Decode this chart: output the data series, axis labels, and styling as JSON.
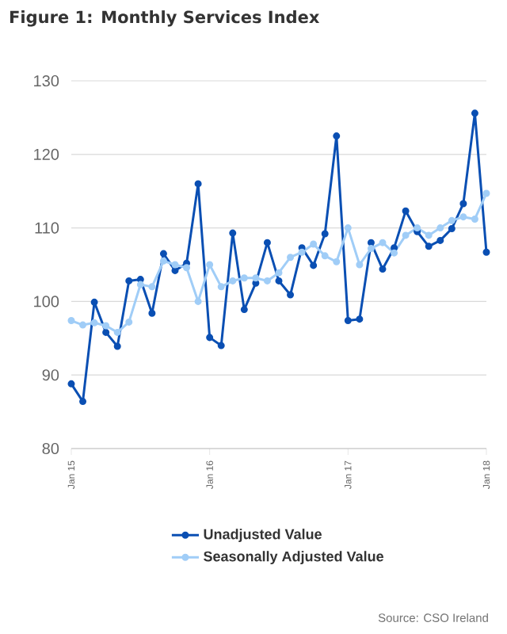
{
  "chart_data": {
    "type": "line",
    "title": "Figure 1: Monthly Services Index",
    "x": [
      "2015-01",
      "2015-02",
      "2015-03",
      "2015-04",
      "2015-05",
      "2015-06",
      "2015-07",
      "2015-08",
      "2015-09",
      "2015-10",
      "2015-11",
      "2015-12",
      "2016-01",
      "2016-02",
      "2016-03",
      "2016-04",
      "2016-05",
      "2016-06",
      "2016-07",
      "2016-08",
      "2016-09",
      "2016-10",
      "2016-11",
      "2016-12",
      "2017-01",
      "2017-02",
      "2017-03",
      "2017-04",
      "2017-05",
      "2017-06",
      "2017-07",
      "2017-08",
      "2017-09",
      "2017-10",
      "2017-11",
      "2017-12",
      "2018-01"
    ],
    "series": [
      {
        "name": "Unadjusted Value",
        "color": "#0a4fb3",
        "values": [
          88.8,
          86.4,
          99.9,
          95.8,
          93.9,
          102.8,
          103.0,
          98.4,
          106.5,
          104.2,
          105.2,
          116.0,
          95.1,
          94.0,
          109.3,
          98.9,
          102.5,
          108.0,
          102.8,
          100.9,
          107.3,
          104.9,
          109.2,
          122.5,
          97.4,
          97.6,
          108.0,
          104.4,
          107.3,
          112.3,
          109.5,
          107.5,
          108.3,
          109.9,
          113.3,
          125.6,
          106.7
        ]
      },
      {
        "name": "Seasonally Adjusted Value",
        "color": "#a0cdf7",
        "values": [
          97.4,
          96.8,
          97.1,
          96.7,
          95.8,
          97.2,
          102.3,
          102.0,
          105.5,
          105.0,
          104.6,
          100.0,
          105.0,
          102.0,
          102.8,
          103.2,
          103.2,
          102.8,
          103.9,
          106.0,
          106.7,
          107.8,
          106.2,
          105.4,
          110.0,
          105.0,
          107.2,
          108.0,
          106.6,
          109.0,
          110.0,
          109.0,
          110.0,
          111.0,
          111.5,
          111.2,
          114.7
        ]
      }
    ],
    "xlim": [
      "2015-01",
      "2018-01"
    ],
    "xticks": [
      {
        "value": "2015-01",
        "label": "Jan 15"
      },
      {
        "value": "2016-01",
        "label": "Jan 16"
      },
      {
        "value": "2017-01",
        "label": "Jan 17"
      },
      {
        "value": "2018-01",
        "label": "Jan 18"
      }
    ],
    "ylim": [
      80,
      130
    ],
    "yticks": [
      80,
      90,
      100,
      110,
      120,
      130
    ],
    "grid": "y",
    "legend": "bottom",
    "marker": "circle",
    "line_style": "solid",
    "annotations": [
      "Source: CSO Ireland"
    ]
  }
}
